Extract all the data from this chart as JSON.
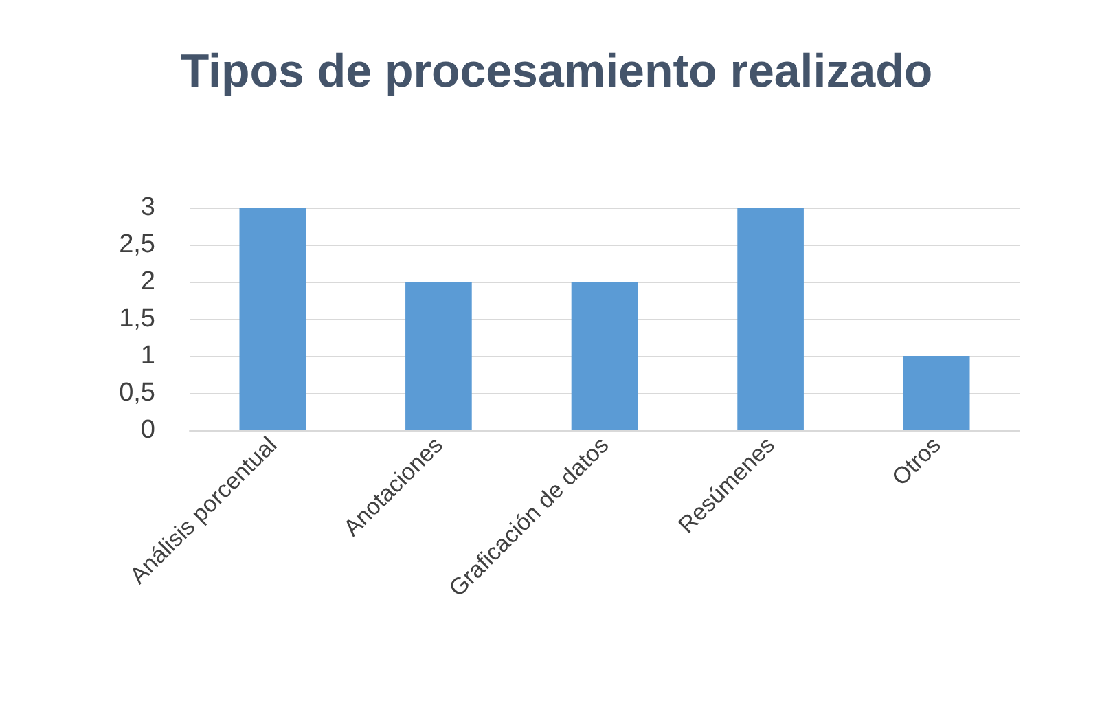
{
  "chart_data": {
    "type": "bar",
    "title": "Tipos de procesamiento realizado",
    "categories": [
      "Análisis porcentual",
      "Anotaciones",
      "Graficación de datos",
      "Resúmenes",
      "Otros"
    ],
    "values": [
      3,
      2,
      2,
      3,
      1
    ],
    "color": "#5b9bd5",
    "ylim": [
      0,
      3
    ],
    "yticks": [
      0,
      {
        "value": 0.5,
        "label": "0,5"
      },
      1,
      {
        "value": 1.5,
        "label": "1,5"
      },
      2,
      {
        "value": 2.5,
        "label": "2,5"
      },
      3
    ],
    "grid": "y"
  }
}
